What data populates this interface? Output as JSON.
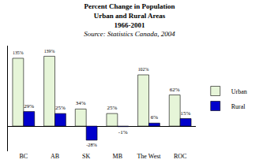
{
  "chart_data": {
    "type": "bar",
    "title": "Percent Change in Population",
    "subtitle": [
      "Urban and Rural Areas",
      "1966-2001"
    ],
    "source": "Source: Statistics Canada, 2004",
    "categories": [
      "BC",
      "AB",
      "SK",
      "MB",
      "The West",
      "ROC"
    ],
    "series": [
      {
        "name": "Urban",
        "color": "#e6f5d8",
        "values": [
          135,
          139,
          34,
          25,
          102,
          62
        ],
        "value_labels": [
          "135%",
          "139%",
          "34%",
          "25%",
          "102%",
          "62%"
        ]
      },
      {
        "name": "Rural",
        "color": "#0000cc",
        "values": [
          29,
          25,
          -28,
          -1,
          6,
          15
        ],
        "value_labels": [
          "29%",
          "25%",
          "-28%",
          "-1%",
          "6%",
          "15%"
        ]
      }
    ],
    "ylim": [
      -50,
      160
    ],
    "grid": false,
    "legend": "right",
    "data_labels": true,
    "tick_labels": "x"
  }
}
